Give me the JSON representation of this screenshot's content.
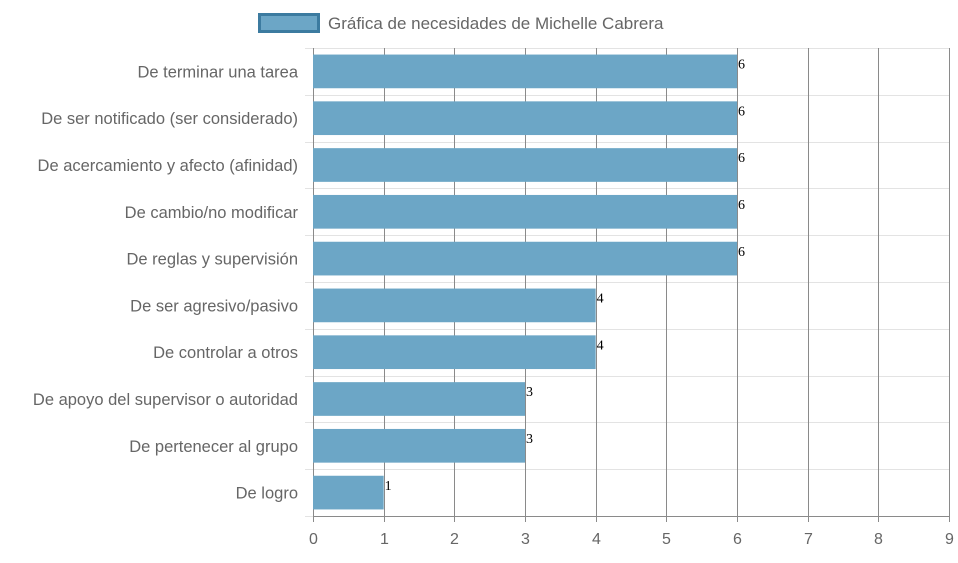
{
  "chart_data": {
    "type": "bar",
    "orientation": "horizontal",
    "legend": {
      "position": "top-center",
      "entries": [
        "Gráfica de necesidades de Michelle Cabrera"
      ]
    },
    "series": [
      {
        "name": "Gráfica de necesidades de Michelle Cabrera",
        "color": "#6ca6c6",
        "border_color": "#3c7ba0",
        "values": [
          6,
          6,
          6,
          6,
          6,
          4,
          4,
          3,
          3,
          1
        ]
      }
    ],
    "categories": [
      "De terminar una tarea",
      "De ser notificado (ser considerado)",
      "De acercamiento y afecto (afinidad)",
      "De cambio/no modificar",
      "De reglas y supervisión",
      "De ser agresivo/pasivo",
      "De controlar a otros",
      "De apoyo del supervisor o autoridad",
      "De pertenecer al grupo",
      "De logro"
    ],
    "xlim": [
      0,
      9
    ],
    "x_ticks": [
      0,
      1,
      2,
      3,
      4,
      5,
      6,
      7,
      8,
      9
    ],
    "data_labels": true,
    "grid": true,
    "colors": {
      "bar_fill": "#6ca6c6",
      "legend_border": "#3c7ba0",
      "grid_light": "#e3e3e3",
      "grid_dark": "#8a8a8a",
      "text": "#666666"
    }
  }
}
